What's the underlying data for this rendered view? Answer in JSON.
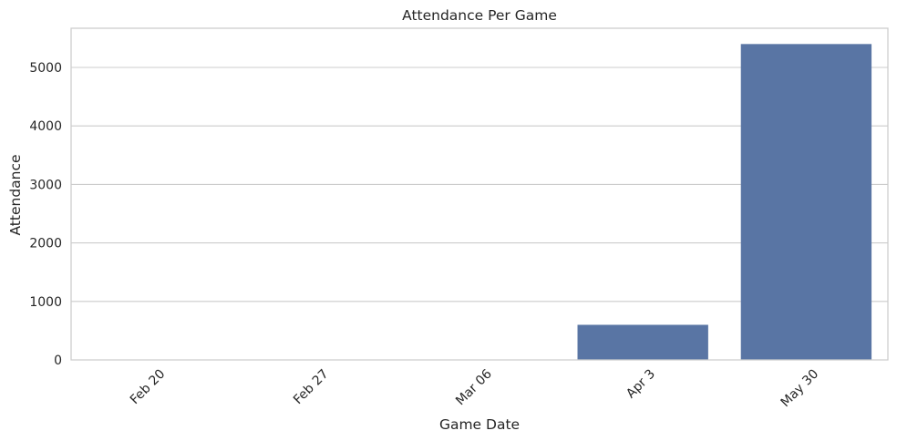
{
  "chart_data": {
    "type": "bar",
    "title": "Attendance Per Game",
    "xlabel": "Game Date",
    "ylabel": "Attendance",
    "categories": [
      "Feb 20",
      "Feb 27",
      "Mar 06",
      "Apr 3",
      "May 30"
    ],
    "values": [
      0,
      0,
      0,
      600,
      5400
    ],
    "ylim": [
      0,
      5670
    ],
    "yticks": [
      0,
      1000,
      2000,
      3000,
      4000,
      5000
    ],
    "grid": true,
    "colors": {
      "bar": "#5975a4",
      "grid": "#cccccc",
      "frame": "#cccccc"
    }
  }
}
